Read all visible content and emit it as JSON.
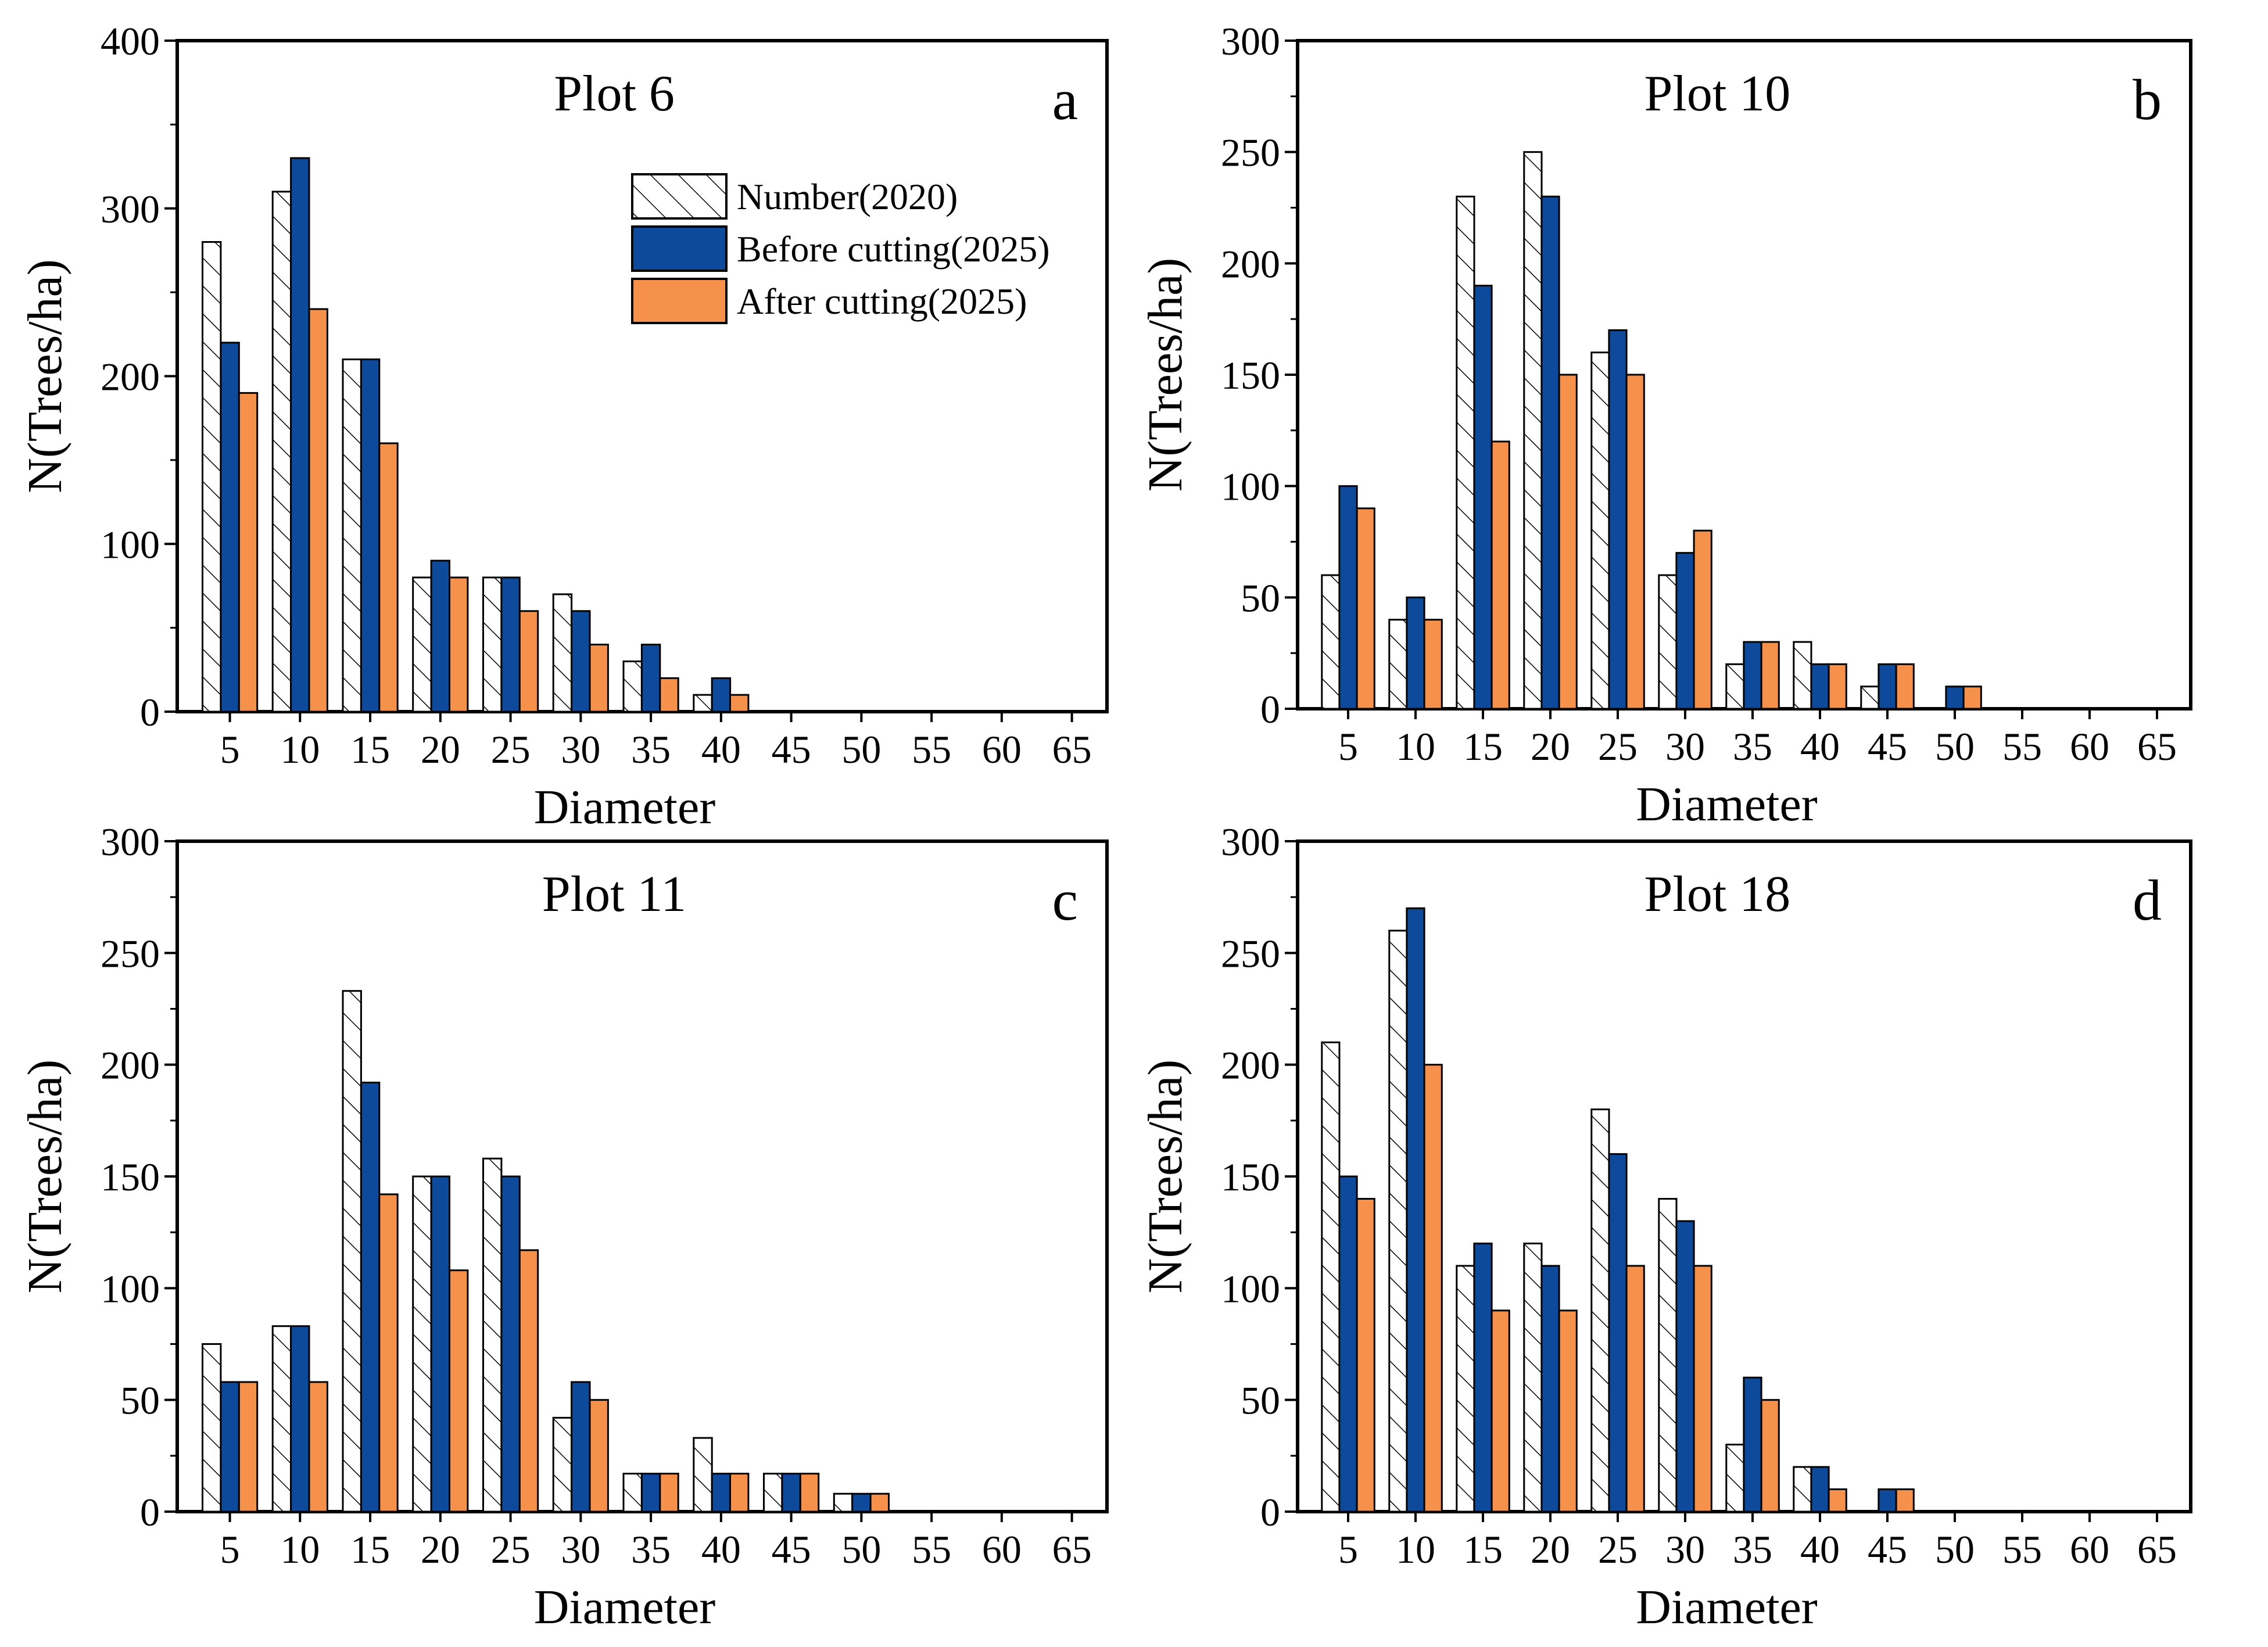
{
  "colors": {
    "number_2020": "#ffffff",
    "before_cutting": "#0e4a9c",
    "after_cutting": "#f5914a",
    "outline": "#000000"
  },
  "legend": [
    {
      "key": "number_2020",
      "label": "Number(2020)",
      "pattern": "hatch"
    },
    {
      "key": "before_cutting",
      "label": "Before cutting(2025)",
      "pattern": "solid"
    },
    {
      "key": "after_cutting",
      "label": "After cutting(2025)",
      "pattern": "solid"
    }
  ],
  "chart_data": [
    {
      "type": "bar",
      "panel": "a",
      "title": "Plot 6",
      "xlabel": "Diameter",
      "ylabel": "N(Trees/ha)",
      "ylim": [
        0,
        400
      ],
      "yticks": [
        0,
        100,
        200,
        300,
        400
      ],
      "categories": [
        "5",
        "10",
        "15",
        "20",
        "25",
        "30",
        "35",
        "40",
        "45",
        "50",
        "55",
        "60",
        "65"
      ],
      "series": [
        {
          "name": "Number(2020)",
          "key": "number_2020",
          "values": [
            280,
            310,
            210,
            80,
            80,
            70,
            30,
            10,
            0,
            0,
            0,
            0,
            0
          ]
        },
        {
          "name": "Before cutting(2025)",
          "key": "before_cutting",
          "values": [
            220,
            330,
            210,
            90,
            80,
            60,
            40,
            20,
            0,
            0,
            0,
            0,
            0
          ]
        },
        {
          "name": "After cutting(2025)",
          "key": "after_cutting",
          "values": [
            190,
            240,
            160,
            80,
            60,
            40,
            20,
            10,
            0,
            0,
            0,
            0,
            0
          ]
        }
      ]
    },
    {
      "type": "bar",
      "panel": "b",
      "title": "Plot 10",
      "xlabel": "Diameter",
      "ylabel": "N(Trees/ha)",
      "ylim": [
        0,
        300
      ],
      "yticks": [
        0,
        50,
        100,
        150,
        200,
        250,
        300
      ],
      "categories": [
        "5",
        "10",
        "15",
        "20",
        "25",
        "30",
        "35",
        "40",
        "45",
        "50",
        "55",
        "60",
        "65"
      ],
      "series": [
        {
          "name": "Number(2020)",
          "key": "number_2020",
          "values": [
            60,
            40,
            230,
            250,
            160,
            60,
            20,
            30,
            10,
            0,
            0,
            0,
            0
          ]
        },
        {
          "name": "Before cutting(2025)",
          "key": "before_cutting",
          "values": [
            100,
            50,
            190,
            230,
            170,
            70,
            30,
            20,
            20,
            10,
            0,
            0,
            0
          ]
        },
        {
          "name": "After cutting(2025)",
          "key": "after_cutting",
          "values": [
            90,
            40,
            120,
            150,
            150,
            80,
            30,
            20,
            20,
            10,
            0,
            0,
            0
          ]
        }
      ]
    },
    {
      "type": "bar",
      "panel": "c",
      "title": "Plot 11",
      "xlabel": "Diameter",
      "ylabel": "N(Trees/ha)",
      "ylim": [
        0,
        300
      ],
      "yticks": [
        0,
        50,
        100,
        150,
        200,
        250,
        300
      ],
      "categories": [
        "5",
        "10",
        "15",
        "20",
        "25",
        "30",
        "35",
        "40",
        "45",
        "50",
        "55",
        "60",
        "65"
      ],
      "series": [
        {
          "name": "Number(2020)",
          "key": "number_2020",
          "values": [
            75,
            83,
            233,
            150,
            158,
            42,
            17,
            33,
            17,
            8,
            0,
            0,
            0
          ]
        },
        {
          "name": "Before cutting(2025)",
          "key": "before_cutting",
          "values": [
            58,
            83,
            192,
            150,
            150,
            58,
            17,
            17,
            17,
            8,
            0,
            0,
            0
          ]
        },
        {
          "name": "After cutting(2025)",
          "key": "after_cutting",
          "values": [
            58,
            58,
            142,
            108,
            117,
            50,
            17,
            17,
            17,
            8,
            0,
            0,
            0
          ]
        }
      ]
    },
    {
      "type": "bar",
      "panel": "d",
      "title": "Plot 18",
      "xlabel": "Diameter",
      "ylabel": "N(Trees/ha)",
      "ylim": [
        0,
        300
      ],
      "yticks": [
        0,
        50,
        100,
        150,
        200,
        250,
        300
      ],
      "categories": [
        "5",
        "10",
        "15",
        "20",
        "25",
        "30",
        "35",
        "40",
        "45",
        "50",
        "55",
        "60",
        "65"
      ],
      "series": [
        {
          "name": "Number(2020)",
          "key": "number_2020",
          "values": [
            210,
            260,
            110,
            120,
            180,
            140,
            30,
            20,
            0,
            0,
            0,
            0,
            0
          ]
        },
        {
          "name": "Before cutting(2025)",
          "key": "before_cutting",
          "values": [
            150,
            270,
            120,
            110,
            160,
            130,
            60,
            20,
            10,
            0,
            0,
            0,
            0
          ]
        },
        {
          "name": "After cutting(2025)",
          "key": "after_cutting",
          "values": [
            140,
            200,
            90,
            90,
            110,
            110,
            50,
            10,
            10,
            0,
            0,
            0,
            0
          ]
        }
      ]
    }
  ]
}
